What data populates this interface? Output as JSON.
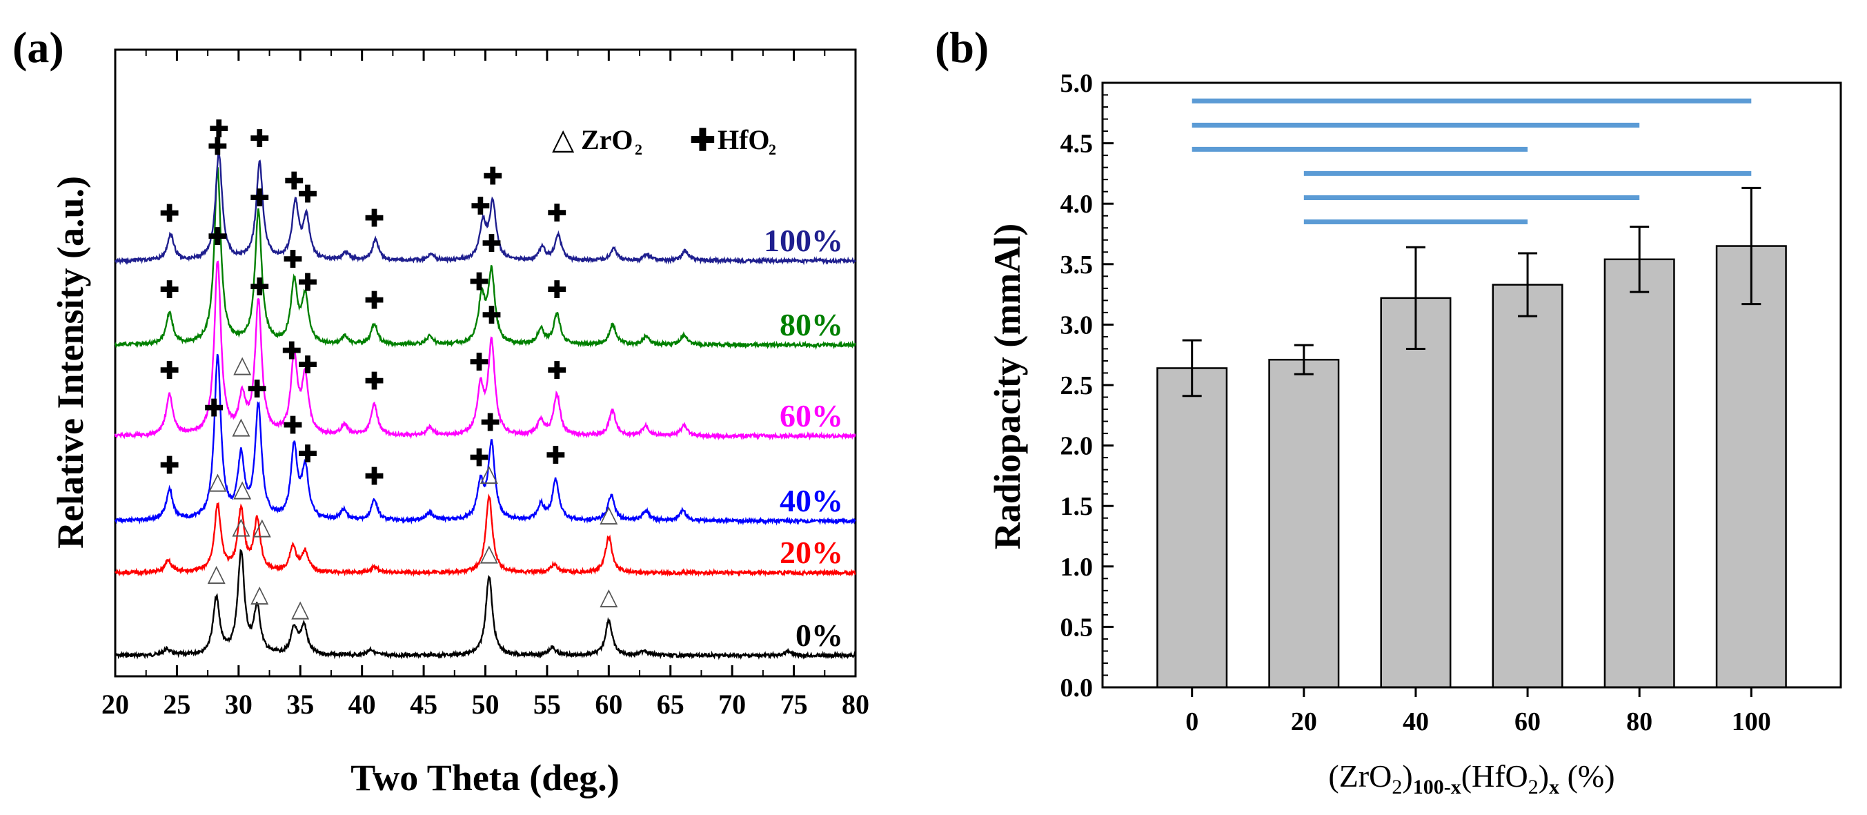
{
  "chart_data": [
    {
      "panel_label": "(a)",
      "type": "line",
      "title": "",
      "xlabel": "Two Theta (deg.)",
      "ylabel": "Relative Intensity (a.u.)",
      "xlim": [
        20,
        80
      ],
      "xticks": [
        "20",
        "25",
        "30",
        "35",
        "40",
        "45",
        "50",
        "55",
        "60",
        "65",
        "70",
        "75",
        "80"
      ],
      "legend": [
        {
          "symbol": "△",
          "label": "ZrO",
          "sub": "2"
        },
        {
          "symbol": "✚",
          "label": "HfO",
          "sub": "2"
        }
      ],
      "series": [
        {
          "name": "0%",
          "color": "#000000",
          "offset": 0,
          "peaks": [
            [
              24.2,
              0.06
            ],
            [
              28.2,
              0.55
            ],
            [
              30.2,
              1.0
            ],
            [
              31.5,
              0.45
            ],
            [
              34.5,
              0.25
            ],
            [
              35.3,
              0.28
            ],
            [
              40.7,
              0.06
            ],
            [
              50.3,
              0.78
            ],
            [
              55.4,
              0.08
            ],
            [
              60.0,
              0.35
            ],
            [
              62.9,
              0.05
            ],
            [
              74.5,
              0.04
            ]
          ],
          "markers": [
            {
              "x": 28.2,
              "s": "tri"
            },
            {
              "x": 30.2,
              "s": "tri"
            },
            {
              "x": 31.7,
              "s": "tri"
            },
            {
              "x": 35.0,
              "s": "tri"
            },
            {
              "x": 50.3,
              "s": "tri"
            },
            {
              "x": 60.0,
              "s": "tri"
            }
          ]
        },
        {
          "name": "20%",
          "color": "#ff0000",
          "offset": 1,
          "peaks": [
            [
              24.3,
              0.12
            ],
            [
              28.3,
              0.65
            ],
            [
              30.2,
              0.6
            ],
            [
              31.5,
              0.5
            ],
            [
              34.4,
              0.25
            ],
            [
              35.4,
              0.2
            ],
            [
              41.0,
              0.06
            ],
            [
              50.3,
              0.75
            ],
            [
              55.6,
              0.08
            ],
            [
              60.0,
              0.35
            ]
          ],
          "markers": [
            {
              "x": 28.3,
              "s": "tri"
            },
            {
              "x": 30.3,
              "s": "tri"
            },
            {
              "x": 31.9,
              "s": "tri"
            },
            {
              "x": 50.3,
              "s": "tri"
            },
            {
              "x": 60.0,
              "s": "tri"
            }
          ]
        },
        {
          "name": "40%",
          "color": "#0000ff",
          "offset": 2,
          "peaks": [
            [
              24.4,
              0.3
            ],
            [
              28.3,
              1.6
            ],
            [
              30.2,
              0.6
            ],
            [
              31.6,
              1.1
            ],
            [
              34.5,
              0.7
            ],
            [
              35.4,
              0.5
            ],
            [
              38.5,
              0.1
            ],
            [
              41.0,
              0.2
            ],
            [
              45.5,
              0.08
            ],
            [
              49.6,
              0.35
            ],
            [
              50.5,
              0.75
            ],
            [
              54.5,
              0.15
            ],
            [
              55.7,
              0.4
            ],
            [
              60.2,
              0.25
            ],
            [
              63.0,
              0.1
            ],
            [
              66.0,
              0.1
            ]
          ],
          "markers": [
            {
              "x": 24.4,
              "s": "plus"
            },
            {
              "x": 28.0,
              "s": "plus"
            },
            {
              "x": 30.2,
              "s": "tri"
            },
            {
              "x": 31.5,
              "s": "plus"
            },
            {
              "x": 34.4,
              "s": "plus"
            },
            {
              "x": 35.6,
              "s": "plus"
            },
            {
              "x": 41.0,
              "s": "plus"
            },
            {
              "x": 49.5,
              "s": "plus"
            },
            {
              "x": 50.4,
              "s": "plus"
            },
            {
              "x": 55.7,
              "s": "plus"
            }
          ]
        },
        {
          "name": "60%",
          "color": "#ff00ff",
          "offset": 3,
          "peaks": [
            [
              24.4,
              0.4
            ],
            [
              28.3,
              1.7
            ],
            [
              30.3,
              0.35
            ],
            [
              31.6,
              1.3
            ],
            [
              34.5,
              0.75
            ],
            [
              35.4,
              0.55
            ],
            [
              38.6,
              0.1
            ],
            [
              41.0,
              0.3
            ],
            [
              45.5,
              0.08
            ],
            [
              49.6,
              0.45
            ],
            [
              50.5,
              0.9
            ],
            [
              54.5,
              0.15
            ],
            [
              55.8,
              0.4
            ],
            [
              60.3,
              0.25
            ],
            [
              63.0,
              0.1
            ],
            [
              66.1,
              0.1
            ]
          ],
          "markers": [
            {
              "x": 24.4,
              "s": "plus"
            },
            {
              "x": 28.3,
              "s": "plus"
            },
            {
              "x": 30.3,
              "s": "tri"
            },
            {
              "x": 31.7,
              "s": "plus"
            },
            {
              "x": 34.3,
              "s": "plus"
            },
            {
              "x": 35.6,
              "s": "plus"
            },
            {
              "x": 41.0,
              "s": "plus"
            },
            {
              "x": 49.5,
              "s": "plus"
            },
            {
              "x": 50.5,
              "s": "plus"
            },
            {
              "x": 55.8,
              "s": "plus"
            }
          ]
        },
        {
          "name": "80%",
          "color": "#008000",
          "offset": 4,
          "peaks": [
            [
              24.4,
              0.3
            ],
            [
              28.3,
              1.7
            ],
            [
              31.6,
              1.3
            ],
            [
              34.5,
              0.6
            ],
            [
              35.4,
              0.45
            ],
            [
              38.6,
              0.08
            ],
            [
              41.0,
              0.2
            ],
            [
              45.5,
              0.08
            ],
            [
              49.7,
              0.45
            ],
            [
              50.5,
              0.7
            ],
            [
              54.5,
              0.15
            ],
            [
              55.8,
              0.3
            ],
            [
              60.3,
              0.2
            ],
            [
              63.0,
              0.08
            ],
            [
              66.1,
              0.1
            ]
          ],
          "markers": [
            {
              "x": 24.4,
              "s": "plus"
            },
            {
              "x": 28.3,
              "s": "plus"
            },
            {
              "x": 31.7,
              "s": "plus"
            },
            {
              "x": 34.4,
              "s": "plus"
            },
            {
              "x": 35.6,
              "s": "plus"
            },
            {
              "x": 41.0,
              "s": "plus"
            },
            {
              "x": 49.5,
              "s": "plus"
            },
            {
              "x": 50.5,
              "s": "plus"
            },
            {
              "x": 55.8,
              "s": "plus"
            }
          ]
        },
        {
          "name": "100%",
          "color": "#1f1f8f",
          "offset": 5,
          "peaks": [
            [
              24.5,
              0.25
            ],
            [
              28.4,
              1.05
            ],
            [
              31.7,
              0.95
            ],
            [
              34.6,
              0.55
            ],
            [
              35.5,
              0.4
            ],
            [
              38.7,
              0.08
            ],
            [
              41.1,
              0.2
            ],
            [
              45.6,
              0.06
            ],
            [
              49.8,
              0.35
            ],
            [
              50.6,
              0.55
            ],
            [
              54.6,
              0.12
            ],
            [
              55.9,
              0.25
            ],
            [
              60.4,
              0.12
            ],
            [
              63.1,
              0.06
            ],
            [
              66.2,
              0.1
            ]
          ],
          "markers": [
            {
              "x": 24.4,
              "s": "plus"
            },
            {
              "x": 28.4,
              "s": "plus"
            },
            {
              "x": 31.7,
              "s": "plus"
            },
            {
              "x": 34.5,
              "s": "plus"
            },
            {
              "x": 35.6,
              "s": "plus"
            },
            {
              "x": 41.0,
              "s": "plus"
            },
            {
              "x": 49.6,
              "s": "plus"
            },
            {
              "x": 50.6,
              "s": "plus"
            },
            {
              "x": 55.8,
              "s": "plus"
            }
          ]
        }
      ]
    },
    {
      "panel_label": "(b)",
      "type": "bar",
      "title": "",
      "categories": [
        "0",
        "20",
        "40",
        "60",
        "80",
        "100"
      ],
      "values": [
        2.64,
        2.71,
        3.22,
        3.33,
        3.54,
        3.65
      ],
      "errors": [
        0.23,
        0.12,
        0.42,
        0.26,
        0.27,
        0.48
      ],
      "ylim": [
        0,
        5.0
      ],
      "yticks": [
        "0.0",
        "0.5",
        "1.0",
        "1.5",
        "2.0",
        "2.5",
        "3.0",
        "3.5",
        "4.0",
        "4.5",
        "5.0"
      ],
      "ylabel": "Radiopacity (mmAl)",
      "xlabel_parts": {
        "a": "(ZrO",
        "b": "2",
        "c": ")",
        "d": "100-x",
        "e": "(HfO",
        "f": "2",
        "g": ")",
        "h": "x",
        "i": " (%)"
      },
      "bar_color": "#c0c0c0",
      "significance_color": "#5b9bd5",
      "significance": [
        {
          "from": "0",
          "to": "100",
          "y": 4.85
        },
        {
          "from": "0",
          "to": "80",
          "y": 4.65
        },
        {
          "from": "0",
          "to": "60",
          "y": 4.45
        },
        {
          "from": "20",
          "to": "100",
          "y": 4.25
        },
        {
          "from": "20",
          "to": "80",
          "y": 4.05
        },
        {
          "from": "20",
          "to": "60",
          "y": 3.85
        }
      ]
    }
  ]
}
